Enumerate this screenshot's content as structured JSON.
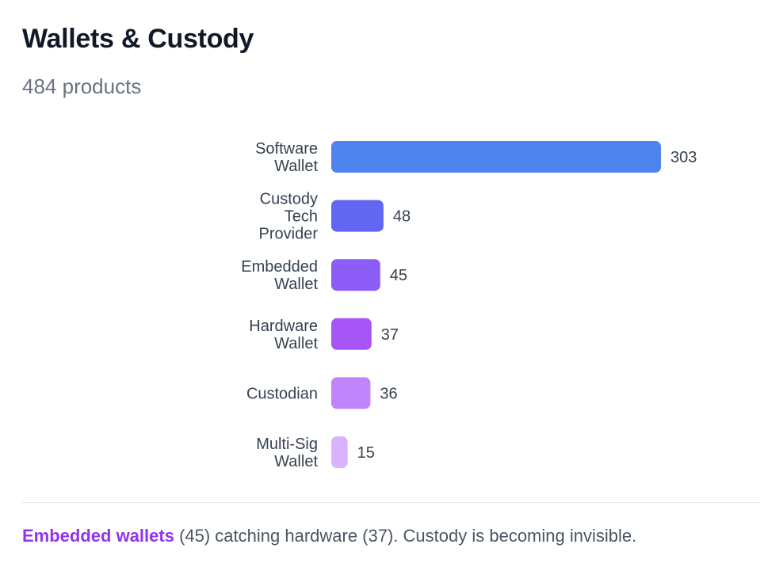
{
  "header": {
    "title": "Wallets & Custody",
    "subtitle": "484 products"
  },
  "chart_data": {
    "type": "bar",
    "orientation": "horizontal",
    "categories": [
      [
        "Software",
        "Wallet"
      ],
      [
        "Custody",
        "Tech",
        "Provider"
      ],
      [
        "Embedded",
        "Wallet"
      ],
      [
        "Hardware",
        "Wallet"
      ],
      [
        "Custodian"
      ],
      [
        "Multi-Sig",
        "Wallet"
      ]
    ],
    "values": [
      303,
      48,
      45,
      37,
      36,
      15
    ],
    "colors": [
      "#4f83ee",
      "#6366f1",
      "#8b5cf6",
      "#a855f7",
      "#c084fc",
      "#d8b4fe"
    ],
    "title": "",
    "xlabel": "",
    "ylabel": "",
    "grid": false,
    "legend": "none"
  },
  "footer": {
    "highlight": "Embedded wallets",
    "text": " (45) catching hardware (37). Custody is becoming invisible."
  }
}
